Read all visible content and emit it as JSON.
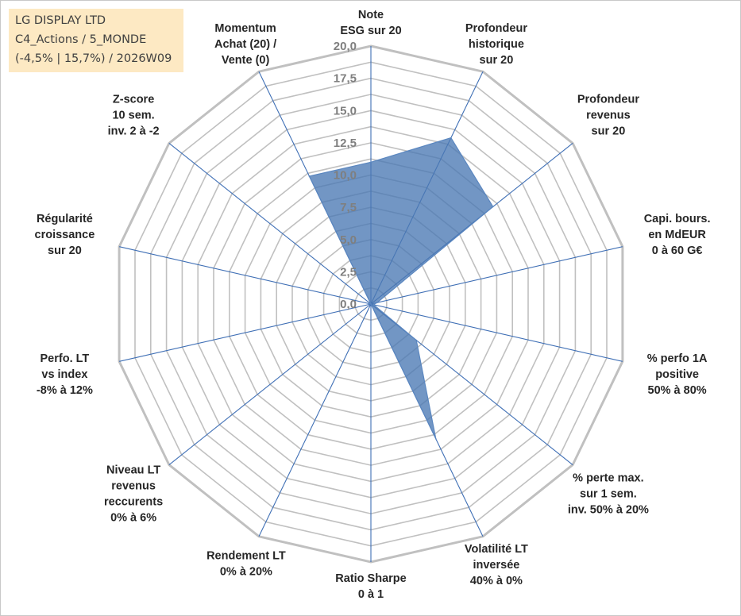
{
  "info": {
    "line1": "LG DISPLAY LTD",
    "line2": "C4_Actions / 5_MONDE",
    "line3": "(-4,5% | 15,7%) / 2026W09"
  },
  "colors": {
    "ring": "#c0c0c0",
    "spoke": "#3f6fb5",
    "fill": "#4a78b3",
    "fill_stroke": "#5b87c0",
    "tick": "#7f7f7f",
    "label": "#262626",
    "info_bg": "#fde9c3"
  },
  "chart_data": {
    "type": "radar",
    "title": "",
    "range": [
      0,
      20
    ],
    "ring_step": 1.25,
    "tick_labels": [
      "0,0",
      "2,5",
      "5,0",
      "7,5",
      "10,0",
      "12,5",
      "15,0",
      "17,5",
      "20,0"
    ],
    "axes": [
      {
        "lines": [
          "Note",
          "ESG sur 20"
        ]
      },
      {
        "lines": [
          "Profondeur",
          "historique",
          "sur 20"
        ]
      },
      {
        "lines": [
          "Profondeur",
          "revenus",
          "sur 20"
        ]
      },
      {
        "lines": [
          "Capi. bours.",
          "en MdEUR",
          "0 à 60 G€"
        ]
      },
      {
        "lines": [
          "% perfo 1A",
          "positive",
          "50% à 80%"
        ]
      },
      {
        "lines": [
          "% perte max.",
          "sur 1 sem.",
          "inv. 50% à 20%"
        ]
      },
      {
        "lines": [
          "Volatilité LT",
          "inversée",
          "40% à 0%"
        ]
      },
      {
        "lines": [
          "Ratio Sharpe",
          "0 à 1"
        ]
      },
      {
        "lines": [
          "Rendement LT",
          "0% à 20%"
        ]
      },
      {
        "lines": [
          "Niveau LT",
          "revenus",
          "reccurents",
          "0% à 6%"
        ]
      },
      {
        "lines": [
          "Perfo. LT",
          "vs index",
          "-8% à 12%"
        ]
      },
      {
        "lines": [
          "Régularité",
          "croissance",
          "sur 20"
        ]
      },
      {
        "lines": [
          "Z-score",
          "10 sem.",
          "inv. 2 à -2"
        ]
      },
      {
        "lines": [
          "Momentum",
          "Achat (20) /",
          "Vente (0)"
        ]
      }
    ],
    "series": [
      {
        "name": "LG DISPLAY LTD",
        "values": [
          11,
          14.3,
          12.1,
          0.5,
          0.2,
          4.5,
          11.6,
          0,
          0,
          0,
          0,
          0.2,
          0,
          11
        ]
      }
    ]
  }
}
